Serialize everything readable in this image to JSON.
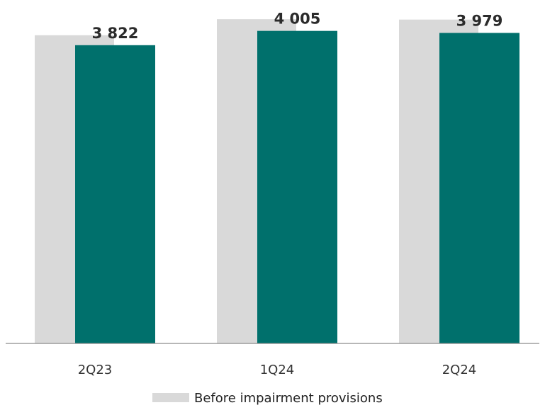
{
  "chart_data": {
    "type": "bar",
    "categories": [
      "2Q23",
      "1Q24",
      "2Q24"
    ],
    "series": [
      {
        "name": "Before impairment provisions",
        "values": [
          3950,
          4155,
          4150
        ],
        "color": "#d9d9d9"
      },
      {
        "values": [
          3822,
          4005,
          3979
        ],
        "color": "#00706c"
      }
    ],
    "data_labels": [
      "3 822",
      "4 005",
      "3 979"
    ],
    "legend": {
      "placement": "bottom"
    },
    "ylim": [
      0,
      4450
    ],
    "grid": false
  }
}
